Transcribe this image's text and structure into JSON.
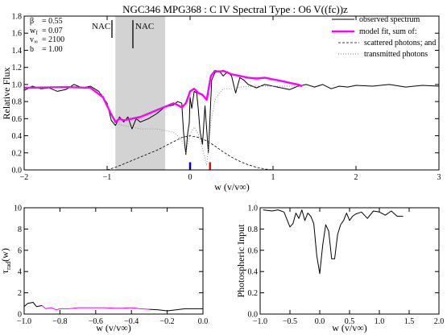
{
  "colors": {
    "observed": "#000000",
    "model": "#ff00ff",
    "scattered": "#000000",
    "transmitted": "#888888",
    "shade": "#d3d3d3",
    "marker_blue": "#0000ff",
    "marker_red": "#ff0000"
  },
  "chart_data": [
    {
      "type": "line",
      "title": "NGC346 MPG368 : C IV     Spectral Type : O6 V((fc))z",
      "xlabel": "w (v/v∞)",
      "ylabel": "Relative Flux",
      "xlim": [
        -2,
        3
      ],
      "ylim": [
        0,
        1.8
      ],
      "xticks": [
        -2,
        -1,
        0,
        1,
        2,
        3
      ],
      "yticks": [
        0.0,
        0.2,
        0.4,
        0.6,
        0.8,
        1.0,
        1.2,
        1.4,
        1.6,
        1.8
      ],
      "ytick_labels": [
        "0.0",
        "0.2",
        "0.4",
        "0.6",
        "0.8",
        "1.0",
        "1.2",
        "1.4",
        "1.6",
        "1.8"
      ],
      "params": [
        {
          "label": "β",
          "value": "= 0.55"
        },
        {
          "label": "w_f",
          "value": "= 0.07"
        },
        {
          "label": "v∞",
          "value": "= 2100"
        },
        {
          "label": "b",
          "value": "= 1.00"
        }
      ],
      "shaded_region": [
        -0.9,
        -0.3
      ],
      "nac_markers": [
        {
          "label": "NAC",
          "x": -0.98
        },
        {
          "label": "NAC",
          "x": -0.72
        }
      ],
      "vertical_markers": [
        {
          "x": 0.0,
          "color": "blue"
        },
        {
          "x": 0.24,
          "color": "red"
        }
      ],
      "legend": {
        "placement": "top-right",
        "entries": [
          "observed spectrum",
          "model fit, sum of:",
          "scattered photons; and",
          "transmitted photons"
        ]
      },
      "series": [
        {
          "name": "observed spectrum",
          "style": "solid-thin",
          "x": [
            -2.0,
            -1.9,
            -1.8,
            -1.7,
            -1.6,
            -1.5,
            -1.4,
            -1.3,
            -1.2,
            -1.1,
            -1.0,
            -0.95,
            -0.9,
            -0.85,
            -0.8,
            -0.75,
            -0.7,
            -0.65,
            -0.6,
            -0.5,
            -0.4,
            -0.3,
            -0.2,
            -0.15,
            -0.1,
            -0.08,
            -0.05,
            -0.03,
            -0.01,
            0.0,
            0.02,
            0.05,
            0.08,
            0.1,
            0.12,
            0.15,
            0.18,
            0.2,
            0.22,
            0.24,
            0.26,
            0.3,
            0.35,
            0.4,
            0.45,
            0.5,
            0.55,
            0.6,
            0.65,
            0.7,
            0.8,
            0.9,
            1.0,
            1.1,
            1.2,
            1.3,
            1.4,
            1.5,
            1.6,
            1.7,
            1.8,
            1.9,
            2.0,
            2.2,
            2.4,
            2.6,
            2.8,
            3.0
          ],
          "y": [
            0.93,
            0.98,
            0.95,
            0.96,
            0.92,
            0.94,
            1.0,
            0.96,
            0.98,
            0.92,
            0.78,
            0.58,
            0.52,
            0.62,
            0.56,
            0.62,
            0.48,
            0.6,
            0.56,
            0.6,
            0.66,
            0.74,
            0.76,
            0.8,
            0.78,
            0.45,
            0.18,
            0.42,
            0.55,
            0.85,
            0.72,
            0.92,
            0.9,
            0.7,
            0.45,
            0.3,
            0.75,
            0.48,
            0.2,
            0.6,
            1.05,
            1.14,
            1.16,
            1.1,
            1.15,
            1.1,
            0.9,
            1.08,
            1.05,
            1.0,
            0.96,
            1.0,
            0.98,
            0.96,
            0.94,
            0.98,
            1.0,
            0.97,
            1.0,
            0.95,
            0.98,
            0.97,
            0.99,
            0.98,
            1.0,
            0.97,
            0.99,
            0.98
          ]
        },
        {
          "name": "model fit, sum of:",
          "style": "solid-thick",
          "x": [
            -2.0,
            -1.5,
            -1.2,
            -1.05,
            -0.95,
            -0.9,
            -0.85,
            -0.8,
            -0.7,
            -0.6,
            -0.5,
            -0.4,
            -0.3,
            -0.2,
            -0.15,
            -0.1,
            -0.05,
            0.0,
            0.05,
            0.1,
            0.15,
            0.2,
            0.25,
            0.3,
            0.35,
            0.4,
            0.5,
            0.6,
            0.7,
            0.8,
            0.9,
            1.0,
            1.1,
            1.2,
            1.3,
            1.35
          ],
          "y": [
            0.96,
            0.97,
            0.96,
            0.85,
            0.65,
            0.56,
            0.6,
            0.58,
            0.6,
            0.62,
            0.66,
            0.7,
            0.74,
            0.78,
            0.76,
            0.73,
            0.78,
            0.92,
            0.95,
            0.9,
            0.88,
            0.82,
            1.1,
            1.16,
            1.15,
            1.16,
            1.12,
            1.1,
            1.08,
            1.07,
            1.08,
            1.06,
            1.04,
            1.02,
            1.0,
            0.98
          ]
        },
        {
          "name": "scattered photons; and",
          "style": "dashed",
          "x": [
            -1.0,
            -0.9,
            -0.8,
            -0.7,
            -0.6,
            -0.5,
            -0.4,
            -0.3,
            -0.2,
            -0.1,
            0.0,
            0.1,
            0.2,
            0.3,
            0.4,
            0.5,
            0.6,
            0.7,
            0.8,
            0.9,
            1.0
          ],
          "y": [
            0.0,
            0.03,
            0.07,
            0.11,
            0.15,
            0.19,
            0.23,
            0.28,
            0.33,
            0.38,
            0.4,
            0.38,
            0.34,
            0.28,
            0.21,
            0.15,
            0.1,
            0.06,
            0.03,
            0.01,
            0.0
          ]
        },
        {
          "name": "transmitted photons",
          "style": "dotted",
          "x": [
            -2.0,
            -1.2,
            -1.05,
            -0.95,
            -0.9,
            -0.8,
            -0.7,
            -0.6,
            -0.5,
            -0.4,
            -0.3,
            -0.2,
            -0.15,
            -0.1,
            -0.05,
            0.0,
            0.05,
            0.1,
            0.15,
            0.2,
            0.25,
            0.3,
            0.35,
            0.4,
            0.5,
            0.6,
            0.8,
            1.0,
            1.2,
            1.3
          ],
          "y": [
            0.97,
            0.97,
            0.88,
            0.64,
            0.54,
            0.52,
            0.5,
            0.48,
            0.48,
            0.48,
            0.46,
            0.44,
            0.4,
            0.35,
            0.2,
            0.42,
            0.5,
            0.42,
            0.25,
            0.05,
            0.55,
            0.82,
            0.9,
            0.95,
            0.95,
            0.97,
            0.98,
            0.98,
            0.98,
            0.98
          ]
        }
      ]
    },
    {
      "type": "line",
      "xlabel": "w (v/v∞)",
      "ylabel": "τrad(w)",
      "xlim": [
        -1.0,
        0.0
      ],
      "ylim": [
        0,
        10
      ],
      "xticks": [
        -1.0,
        -0.8,
        -0.6,
        -0.4,
        -0.2,
        0.0
      ],
      "yticks": [
        0,
        2,
        4,
        6,
        8,
        10
      ],
      "series": [
        {
          "color": "black",
          "x": [
            -1.0,
            -0.98,
            -0.95,
            -0.93,
            -0.9
          ],
          "y": [
            0.7,
            1.0,
            1.1,
            0.7,
            0.8
          ]
        },
        {
          "color": "magenta",
          "x": [
            -0.9,
            -0.88,
            -0.85,
            -0.82,
            -0.8,
            -0.75,
            -0.7,
            -0.65,
            -0.6,
            -0.55,
            -0.5,
            -0.45,
            -0.4,
            -0.35,
            -0.3
          ],
          "y": [
            0.8,
            0.5,
            0.6,
            0.4,
            0.5,
            0.5,
            0.6,
            0.6,
            0.6,
            0.6,
            0.55,
            0.55,
            0.6,
            0.5,
            0.45
          ]
        },
        {
          "color": "black",
          "x": [
            -0.3,
            -0.25,
            -0.2,
            -0.15,
            -0.1,
            -0.05,
            0.0
          ],
          "y": [
            0.45,
            0.4,
            0.3,
            0.4,
            0.5,
            0.5,
            0.5
          ]
        }
      ]
    },
    {
      "type": "line",
      "xlabel": "w (v/v∞)",
      "ylabel": "Photospheric Input",
      "xlim": [
        -1.0,
        2.0
      ],
      "ylim": [
        0.0,
        1.0
      ],
      "xticks": [
        -1.0,
        -0.5,
        0.0,
        0.5,
        1.0,
        1.5,
        2.0
      ],
      "yticks": [
        0.0,
        0.2,
        0.4,
        0.6,
        0.8,
        1.0
      ],
      "series": [
        {
          "color": "black",
          "x": [
            -0.95,
            -0.8,
            -0.7,
            -0.6,
            -0.5,
            -0.45,
            -0.4,
            -0.35,
            -0.3,
            -0.25,
            -0.2,
            -0.15,
            -0.1,
            -0.05,
            0.0,
            0.05,
            0.1,
            0.15,
            0.2,
            0.25,
            0.3,
            0.35,
            0.4,
            0.45,
            0.5,
            0.55,
            0.6,
            0.7,
            0.8,
            0.9,
            1.0,
            1.1,
            1.2,
            1.3,
            1.4
          ],
          "y": [
            0.98,
            0.97,
            0.98,
            0.96,
            0.82,
            0.85,
            0.95,
            0.9,
            0.98,
            0.88,
            0.95,
            0.92,
            0.85,
            0.55,
            0.38,
            0.65,
            0.84,
            0.78,
            0.52,
            0.52,
            0.75,
            0.84,
            0.88,
            0.95,
            0.88,
            0.92,
            0.94,
            0.96,
            0.9,
            0.97,
            0.96,
            0.93,
            0.97,
            0.92,
            0.92
          ]
        }
      ]
    }
  ]
}
